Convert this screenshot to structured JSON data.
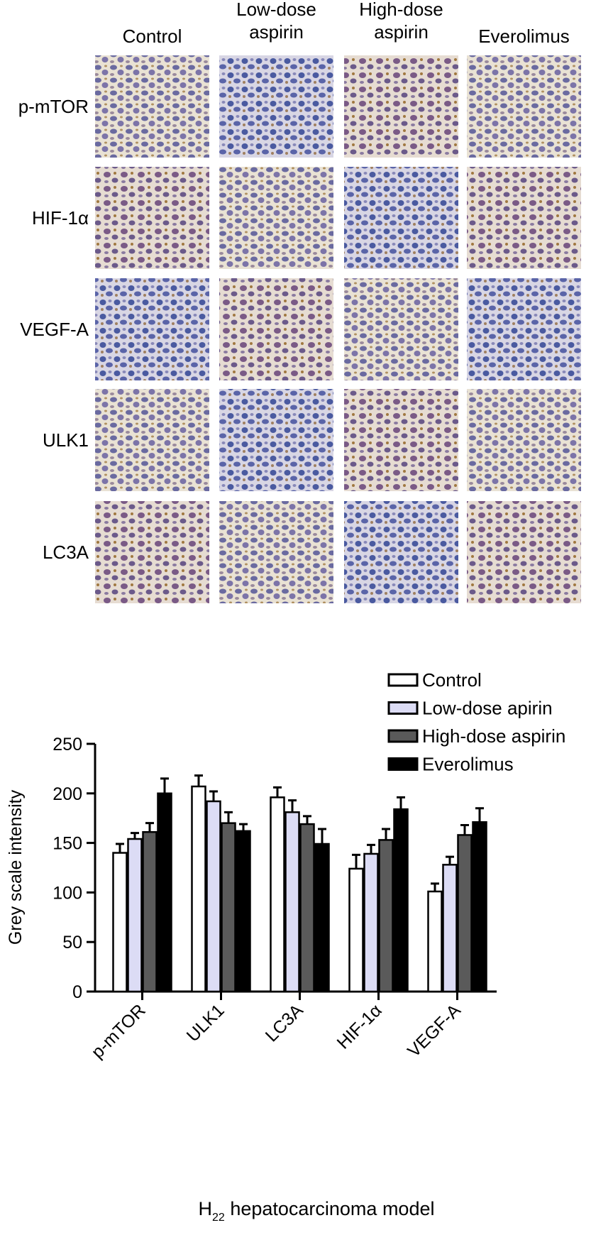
{
  "figure": {
    "columns": [
      "Control",
      [
        "Low-dose",
        "aspirin"
      ],
      [
        "High-dose",
        "aspirin"
      ],
      "Everolimus"
    ],
    "rows": [
      "p-mTOR",
      "HIF-1α",
      "VEGF-A",
      "ULK1",
      "LC3A"
    ]
  },
  "chart_data": {
    "type": "bar",
    "ylabel": "Grey scale intensity",
    "xlabel": {
      "base": "H",
      "subscript": "22",
      "rest": " hepatocarcinoma model"
    },
    "categories": [
      "p-mTOR",
      "ULK1",
      "LC3A",
      "HIF-1α",
      "VEGF-A"
    ],
    "series": [
      {
        "name": "Control",
        "color": "#ffffff",
        "values": [
          140,
          207,
          196,
          124,
          101
        ],
        "errors": [
          9,
          11,
          10,
          14,
          8
        ]
      },
      {
        "name": "Low-dose apirin",
        "color": "#dcdcf5",
        "values": [
          154,
          192,
          181,
          139,
          128
        ],
        "errors": [
          6,
          10,
          12,
          9,
          8
        ]
      },
      {
        "name": "High-dose aspirin",
        "color": "#5a5a5a",
        "values": [
          161,
          170,
          169,
          153,
          158
        ],
        "errors": [
          9,
          11,
          8,
          11,
          10
        ]
      },
      {
        "name": "Everolimus",
        "color": "#000000",
        "values": [
          200,
          162,
          149,
          184,
          171
        ],
        "errors": [
          15,
          7,
          15,
          12,
          14
        ]
      }
    ],
    "ylim": [
      0,
      250
    ],
    "yticks": [
      0,
      50,
      100,
      150,
      200,
      250
    ],
    "legend": "top-right"
  }
}
